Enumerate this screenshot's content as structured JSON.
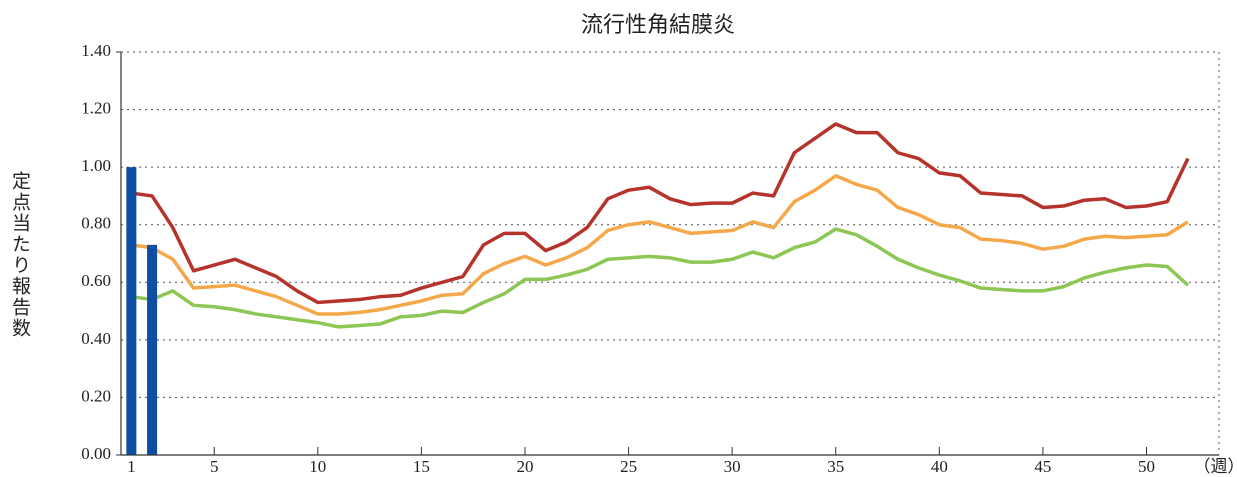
{
  "chart_data": {
    "type": "line",
    "title": "流行性角結膜炎",
    "y_label": "定点当たり報告数",
    "x_label": "（週）",
    "x": [
      1,
      2,
      3,
      4,
      5,
      6,
      7,
      8,
      9,
      10,
      11,
      12,
      13,
      14,
      15,
      16,
      17,
      18,
      19,
      20,
      21,
      22,
      23,
      24,
      25,
      26,
      27,
      28,
      29,
      30,
      31,
      32,
      33,
      34,
      35,
      36,
      37,
      38,
      39,
      40,
      41,
      42,
      43,
      44,
      45,
      46,
      47,
      48,
      49,
      50,
      51,
      52
    ],
    "xlim": [
      0.5,
      53.5
    ],
    "xticks": [
      1,
      5,
      10,
      15,
      20,
      25,
      30,
      35,
      40,
      45,
      50
    ],
    "ylim": [
      0,
      1.4
    ],
    "yticks": [
      {
        "value": 0,
        "label": "0.00"
      },
      {
        "value": 0.2,
        "label": "0.20"
      },
      {
        "value": 0.4,
        "label": "0.40"
      },
      {
        "value": 0.6,
        "label": "0.60"
      },
      {
        "value": 0.8,
        "label": "0.80"
      },
      {
        "value": 1,
        "label": "1.00"
      },
      {
        "value": 1.2,
        "label": "1.20"
      },
      {
        "value": 1.4,
        "label": "1.40"
      }
    ],
    "grid": true,
    "series": [
      {
        "type": "line",
        "color": "#b5332a",
        "values": [
          0.91,
          0.9,
          0.79,
          0.64,
          0.66,
          0.68,
          0.65,
          0.62,
          0.57,
          0.53,
          0.535,
          0.54,
          0.55,
          0.555,
          0.58,
          0.6,
          0.62,
          0.73,
          0.77,
          0.77,
          0.71,
          0.74,
          0.79,
          0.89,
          0.92,
          0.93,
          0.89,
          0.87,
          0.875,
          0.875,
          0.91,
          0.9,
          1.05,
          1.1,
          1.15,
          1.12,
          1.12,
          1.05,
          1.03,
          0.98,
          0.97,
          0.91,
          0.905,
          0.9,
          0.86,
          0.865,
          0.885,
          0.89,
          0.86,
          0.865,
          0.88,
          1.03
        ]
      },
      {
        "type": "line",
        "color": "#f5a84a",
        "values": [
          0.73,
          0.72,
          0.68,
          0.58,
          0.585,
          0.59,
          0.57,
          0.55,
          0.52,
          0.49,
          0.49,
          0.495,
          0.505,
          0.52,
          0.535,
          0.555,
          0.56,
          0.63,
          0.665,
          0.69,
          0.66,
          0.685,
          0.72,
          0.78,
          0.8,
          0.81,
          0.79,
          0.77,
          0.775,
          0.78,
          0.81,
          0.79,
          0.88,
          0.92,
          0.97,
          0.94,
          0.92,
          0.86,
          0.835,
          0.8,
          0.79,
          0.75,
          0.745,
          0.735,
          0.715,
          0.725,
          0.75,
          0.76,
          0.755,
          0.76,
          0.765,
          0.81
        ]
      },
      {
        "type": "line",
        "color": "#8cc653",
        "values": [
          0.55,
          0.54,
          0.57,
          0.52,
          0.515,
          0.505,
          0.49,
          0.48,
          0.47,
          0.46,
          0.445,
          0.45,
          0.455,
          0.48,
          0.485,
          0.5,
          0.495,
          0.53,
          0.56,
          0.61,
          0.61,
          0.625,
          0.645,
          0.68,
          0.685,
          0.69,
          0.685,
          0.67,
          0.67,
          0.68,
          0.705,
          0.685,
          0.72,
          0.74,
          0.785,
          0.765,
          0.725,
          0.68,
          0.65,
          0.625,
          0.605,
          0.58,
          0.575,
          0.57,
          0.57,
          0.585,
          0.615,
          0.635,
          0.65,
          0.66,
          0.655,
          0.59
        ]
      },
      {
        "type": "bar",
        "color": "#0b4ea2",
        "values": [
          1.0,
          0.73,
          null,
          null,
          null,
          null,
          null,
          null,
          null,
          null,
          null,
          null,
          null,
          null,
          null,
          null,
          null,
          null,
          null,
          null,
          null,
          null,
          null,
          null,
          null,
          null,
          null,
          null,
          null,
          null,
          null,
          null,
          null,
          null,
          null,
          null,
          null,
          null,
          null,
          null,
          null,
          null,
          null,
          null,
          null,
          null,
          null,
          null,
          null,
          null,
          null,
          null
        ]
      }
    ]
  }
}
